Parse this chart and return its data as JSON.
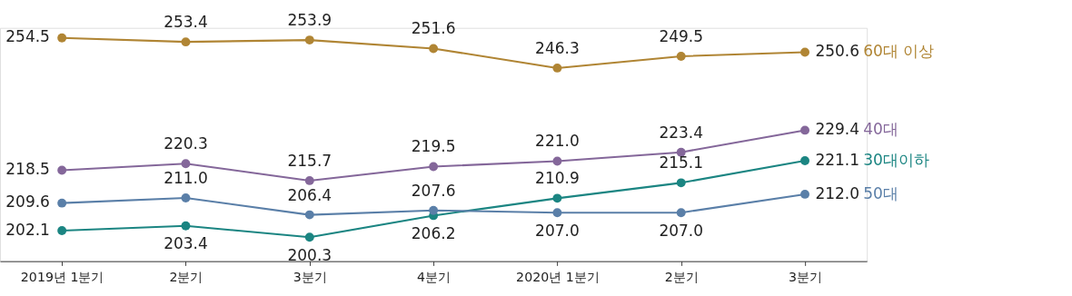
{
  "chart_data": {
    "type": "line",
    "categories": [
      "2019년 1분기",
      "2분기",
      "3분기",
      "4분기",
      "2020년 1분기",
      "2분기",
      "3분기"
    ],
    "marker": "circle",
    "grid": false,
    "tick_labels": "x",
    "series": [
      {
        "name": "60대 이상",
        "color": "#b08534",
        "values": [
          254.5,
          253.4,
          253.9,
          251.6,
          246.3,
          249.5,
          250.6
        ],
        "value_labels": [
          "254.5",
          "253.4",
          "253.9",
          "251.6",
          "246.3",
          "249.5",
          "250.6"
        ]
      },
      {
        "name": "40대",
        "color": "#84679a",
        "values": [
          218.5,
          220.3,
          215.7,
          219.5,
          221.0,
          223.4,
          229.4
        ],
        "value_labels": [
          "218.5",
          "220.3",
          "215.7",
          "219.5",
          "221.0",
          "223.4",
          "229.4"
        ]
      },
      {
        "name": "30대이하",
        "color": "#1b8582",
        "values": [
          202.1,
          203.4,
          200.3,
          206.2,
          210.9,
          215.1,
          221.1
        ],
        "value_labels": [
          "202.1",
          "203.4",
          "200.3",
          "206.2",
          "210.9",
          "215.1",
          "221.1"
        ]
      },
      {
        "name": "50대",
        "color": "#5a7fa8",
        "values": [
          209.6,
          211.0,
          206.4,
          207.6,
          207.0,
          207.0,
          212.0
        ],
        "value_labels": [
          "209.6",
          "211.0",
          "206.4",
          "207.6",
          "207.0",
          "207.0",
          "212.0"
        ]
      }
    ]
  }
}
